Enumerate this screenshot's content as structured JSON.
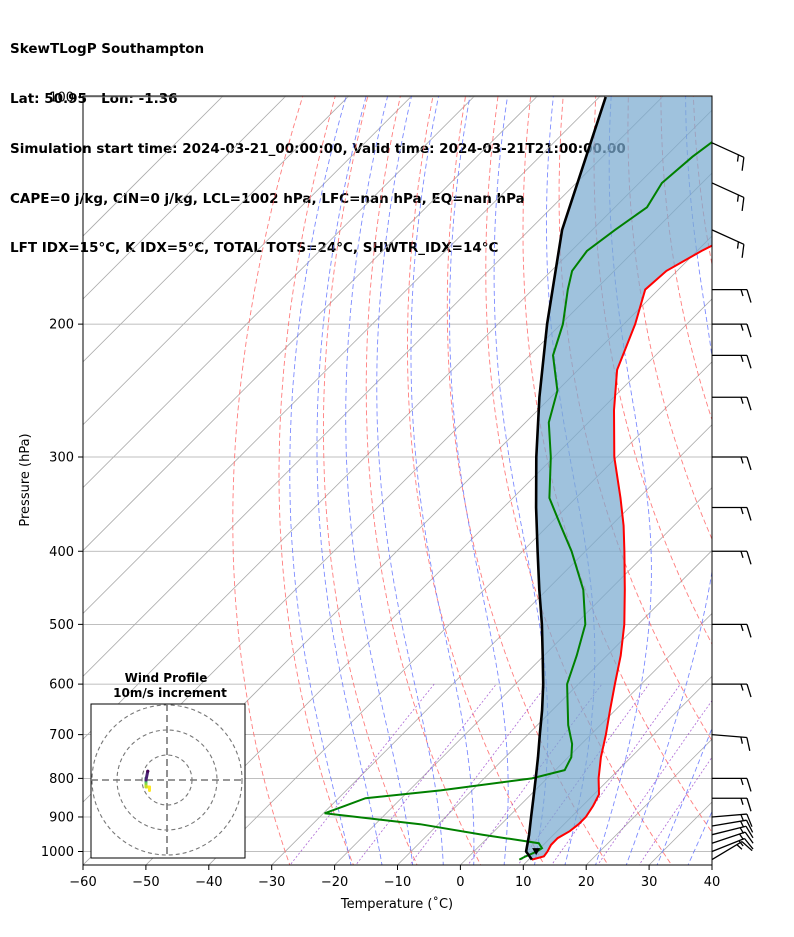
{
  "header": {
    "line1": "SkewTLogP Southampton",
    "line2": "Lat: 50.95   Lon: -1.36",
    "line3": "Simulation start time: 2024-03-21_00:00:00, Valid time: 2024-03-21T21:00:00.00",
    "line4": "CAPE=0 j/kg, CIN=0 j/kg, LCL=1002 hPa, LFC=nan hPa, EQ=nan hPa",
    "line5": "LFT IDX=15°C, K IDX=5°C, TOTAL TOTS=24°C, SHWTR_IDX=14°C"
  },
  "colors": {
    "temperature": "#ff0000",
    "dewpoint": "#008000",
    "parcel": "#000000",
    "cape_fill": "#7aaad0",
    "dry_adiabat": "#ff6666",
    "moist_adiabat": "#6677ff",
    "mixing_ratio": "#9944cc",
    "isotherm": "#aaaaaa"
  },
  "chart_data": {
    "type": "line",
    "xlabel": "Temperature (˚C)",
    "ylabel": "Pressure (hPa)",
    "xlim": [
      -60,
      40
    ],
    "ylim": [
      1050,
      100
    ],
    "yscale": "log",
    "skew": true,
    "grid": true,
    "xticks": [
      "−60",
      "−50",
      "−40",
      "−30",
      "−20",
      "−10",
      "0",
      "10",
      "20",
      "30",
      "40"
    ],
    "yticks": [
      "100",
      "200",
      "300",
      "400",
      "500",
      "600",
      "700",
      "800",
      "900",
      "1000"
    ],
    "series": [
      {
        "name": "",
        "role": "temperature",
        "points": [
          [
            1025,
            10.5
          ],
          [
            1015,
            11.9
          ],
          [
            1000,
            11.7
          ],
          [
            980,
            11.2
          ],
          [
            960,
            11.2
          ],
          [
            940,
            12.0
          ],
          [
            920,
            12.3
          ],
          [
            900,
            12.3
          ],
          [
            870,
            11.7
          ],
          [
            840,
            10.8
          ],
          [
            800,
            8.2
          ],
          [
            750,
            5.2
          ],
          [
            700,
            2.4
          ],
          [
            650,
            -0.8
          ],
          [
            600,
            -4.2
          ],
          [
            550,
            -7.8
          ],
          [
            500,
            -12.2
          ],
          [
            450,
            -17.6
          ],
          [
            400,
            -23.8
          ],
          [
            370,
            -28.0
          ],
          [
            340,
            -32.9
          ],
          [
            300,
            -40.4
          ],
          [
            260,
            -47.9
          ],
          [
            230,
            -53.8
          ],
          [
            200,
            -58.2
          ],
          [
            180,
            -62.1
          ],
          [
            170,
            -61.7
          ],
          [
            160,
            -59.3
          ],
          [
            150,
            -56.0
          ],
          [
            140,
            -53.8
          ],
          [
            130,
            -53.2
          ],
          [
            120,
            -53.0
          ],
          [
            110,
            -54.0
          ],
          [
            100,
            -54.5
          ]
        ]
      },
      {
        "name": "",
        "role": "dewpoint",
        "points": [
          [
            1025,
            8.5
          ],
          [
            1015,
            9.0
          ],
          [
            1000,
            10.0
          ],
          [
            990,
            10.3
          ],
          [
            975,
            9.0
          ],
          [
            950,
            -1.3
          ],
          [
            920,
            -12.9
          ],
          [
            890,
            -29.8
          ],
          [
            870,
            -27.8
          ],
          [
            850,
            -25.7
          ],
          [
            830,
            -15.0
          ],
          [
            800,
            -2.4
          ],
          [
            780,
            1.5
          ],
          [
            750,
            0.5
          ],
          [
            720,
            -1.5
          ],
          [
            680,
            -5.1
          ],
          [
            600,
            -11.8
          ],
          [
            550,
            -14.8
          ],
          [
            500,
            -18.4
          ],
          [
            450,
            -24.2
          ],
          [
            400,
            -32.2
          ],
          [
            370,
            -38.0
          ],
          [
            340,
            -44.2
          ],
          [
            300,
            -50.5
          ],
          [
            270,
            -56.3
          ],
          [
            245,
            -60.0
          ],
          [
            220,
            -66.3
          ],
          [
            200,
            -69.7
          ],
          [
            180,
            -74.4
          ],
          [
            170,
            -76.7
          ],
          [
            160,
            -77.5
          ],
          [
            150,
            -76.4
          ],
          [
            140,
            -74.9
          ],
          [
            130,
            -76.4
          ],
          [
            120,
            -75.7
          ],
          [
            110,
            -74.2
          ],
          [
            100,
            -71.2
          ]
        ]
      },
      {
        "name": "",
        "role": "parcel",
        "points": [
          [
            1025,
            10.5
          ],
          [
            1000,
            8.3
          ],
          [
            950,
            6.1
          ],
          [
            900,
            3.6
          ],
          [
            850,
            1.0
          ],
          [
            800,
            -1.8
          ],
          [
            750,
            -4.8
          ],
          [
            700,
            -8.1
          ],
          [
            650,
            -11.6
          ],
          [
            600,
            -15.6
          ],
          [
            550,
            -20.2
          ],
          [
            500,
            -25.3
          ],
          [
            450,
            -31.2
          ],
          [
            400,
            -37.6
          ],
          [
            350,
            -44.8
          ],
          [
            300,
            -52.8
          ],
          [
            250,
            -61.8
          ],
          [
            200,
            -72.2
          ],
          [
            150,
            -84.8
          ],
          [
            100,
            -99.0
          ]
        ]
      }
    ],
    "wind_barbs": [
      {
        "p": 1025,
        "u": -10,
        "v": -6
      },
      {
        "p": 1000,
        "u": -10,
        "v": -4
      },
      {
        "p": 975,
        "u": -12,
        "v": -4
      },
      {
        "p": 950,
        "u": -12,
        "v": -3
      },
      {
        "p": 925,
        "u": -12,
        "v": -2
      },
      {
        "p": 900,
        "u": -12,
        "v": -1
      },
      {
        "p": 850,
        "u": -12,
        "v": 0
      },
      {
        "p": 800,
        "u": -12,
        "v": 0
      },
      {
        "p": 700,
        "u": -12,
        "v": 1
      },
      {
        "p": 600,
        "u": -12,
        "v": 0
      },
      {
        "p": 500,
        "u": -12,
        "v": 0
      },
      {
        "p": 400,
        "u": -12,
        "v": 0
      },
      {
        "p": 350,
        "u": -12,
        "v": 0
      },
      {
        "p": 300,
        "u": -12,
        "v": 0
      },
      {
        "p": 250,
        "u": -12,
        "v": 0
      },
      {
        "p": 220,
        "u": -12,
        "v": 0
      },
      {
        "p": 200,
        "u": -12,
        "v": 0
      },
      {
        "p": 180,
        "u": -12,
        "v": 0
      },
      {
        "p": 150,
        "u": -11,
        "v": 5
      },
      {
        "p": 130,
        "u": -11,
        "v": 5
      },
      {
        "p": 115,
        "u": -11,
        "v": 5
      }
    ],
    "inset": {
      "title": "Wind Profile",
      "subtitle": "10m/s increment"
    }
  }
}
